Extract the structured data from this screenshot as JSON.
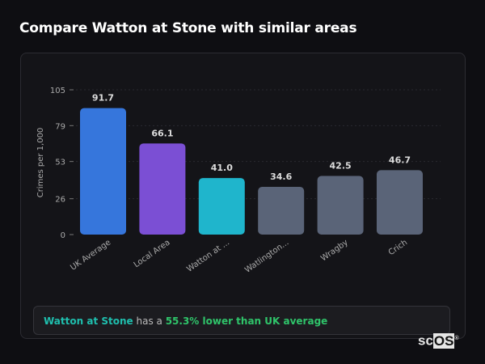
{
  "header": {
    "title": "Compare Watton at Stone with similar areas"
  },
  "chart_data": {
    "type": "bar",
    "title": "",
    "xlabel": "",
    "ylabel": "Crimes per 1,000",
    "ylim": [
      0,
      105
    ],
    "yticks": [
      0,
      26,
      53,
      79,
      105
    ],
    "grid": true,
    "categories": [
      "UK Average",
      "Local Area",
      "Watton at ...",
      "Watlington...",
      "Wragby",
      "Crich"
    ],
    "values": [
      91.7,
      66.1,
      41.0,
      34.6,
      42.5,
      46.7
    ],
    "value_labels": [
      "91.7",
      "66.1",
      "41.0",
      "34.6",
      "42.5",
      "46.7"
    ],
    "colors": [
      "#3676dc",
      "#7b4fd4",
      "#1fb5cc",
      "#5a6478",
      "#5a6478",
      "#5a6478"
    ]
  },
  "summary": {
    "place": "Watton at Stone",
    "middle": " has a ",
    "stat": "55.3% lower than UK average"
  },
  "logo": {
    "text_sc": "sc",
    "text_os": "OS",
    "mark": "®"
  }
}
